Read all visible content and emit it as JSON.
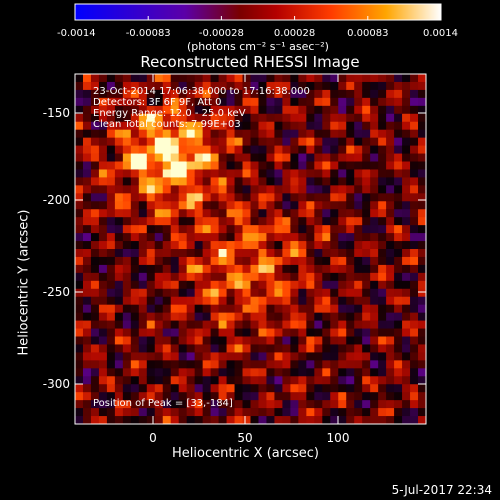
{
  "colorbar": {
    "tick_labels": [
      "-0.0014",
      "-0.00083",
      "-0.00028",
      "0.00028",
      "0.00083",
      "0.0014"
    ],
    "units_label": "(photons cm⁻² s⁻¹ asec⁻²)"
  },
  "plot": {
    "title": "Reconstructed RHESSI Image",
    "xlabel": "Heliocentric X (arcsec)",
    "ylabel": "Heliocentric Y (arcsec)",
    "x_ticks": [
      "0",
      "50",
      "100"
    ],
    "y_ticks": [
      "-150",
      "-200",
      "-250",
      "-300"
    ]
  },
  "annotations": {
    "time_range": "23-Oct-2014 17:06:38.000 to 17:16:38.000",
    "detectors": "Detectors: 3F 6F 9F, Att 0",
    "energy": "Energy Range: 12.0 - 25.0 keV",
    "method": "Clean     Total counts: 7.99E+03",
    "peak": "Position of Peak = [33,-184]"
  },
  "footer_date": "5-Jul-2017 22:34",
  "colors": {
    "background": "#000000",
    "text": "#ffffff"
  }
}
